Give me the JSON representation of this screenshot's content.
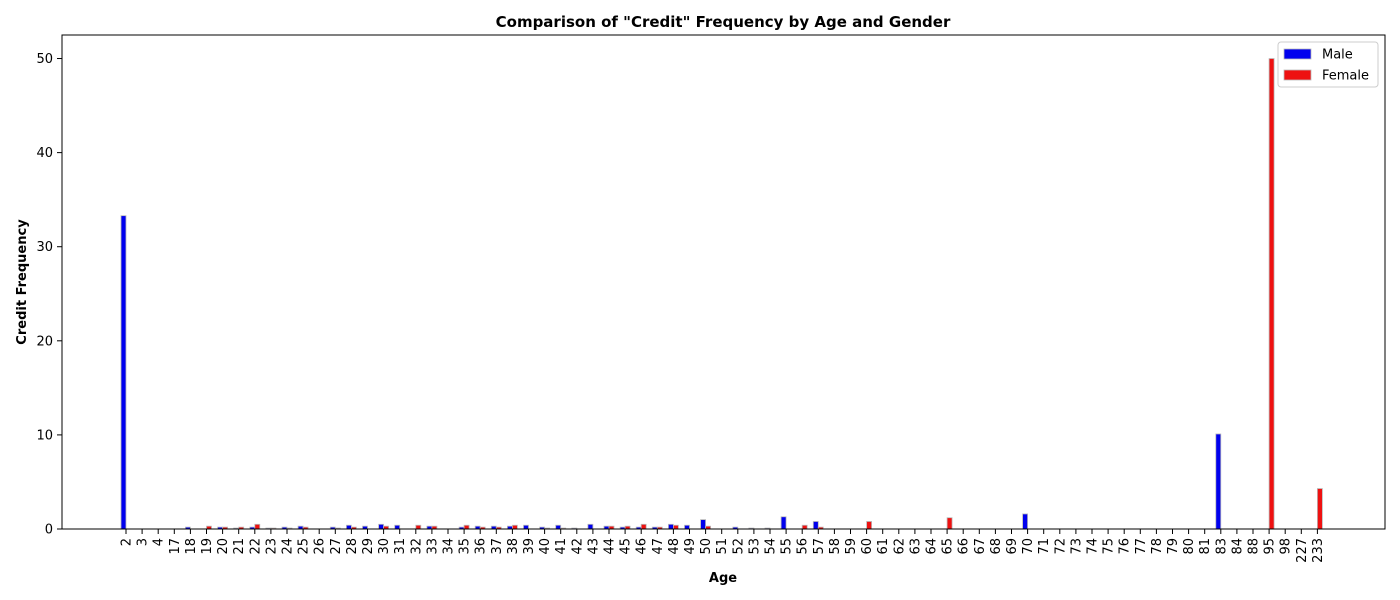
{
  "chart_data": {
    "type": "bar",
    "title": "Comparison of \"Credit\" Frequency by Age and Gender",
    "xlabel": "Age",
    "ylabel": "Credit Frequency",
    "ylim": [
      0,
      52.5
    ],
    "yticks": [
      0,
      10,
      20,
      30,
      40,
      50
    ],
    "grid": false,
    "legend_position": "top-right",
    "categories": [
      "2",
      "3",
      "4",
      "17",
      "18",
      "19",
      "20",
      "21",
      "22",
      "23",
      "24",
      "25",
      "26",
      "27",
      "28",
      "29",
      "30",
      "31",
      "32",
      "33",
      "34",
      "35",
      "36",
      "37",
      "38",
      "39",
      "40",
      "41",
      "42",
      "43",
      "44",
      "45",
      "46",
      "47",
      "48",
      "49",
      "50",
      "51",
      "52",
      "53",
      "54",
      "55",
      "56",
      "57",
      "58",
      "59",
      "60",
      "61",
      "62",
      "63",
      "64",
      "65",
      "66",
      "67",
      "68",
      "69",
      "70",
      "71",
      "72",
      "73",
      "74",
      "75",
      "76",
      "77",
      "78",
      "79",
      "80",
      "81",
      "83",
      "84",
      "88",
      "95",
      "98",
      "227",
      "233"
    ],
    "series": [
      {
        "name": "Male",
        "color": "#0000ee",
        "values": [
          33.3,
          0,
          0,
          0,
          0.2,
          0,
          0.2,
          0.1,
          0.2,
          0.1,
          0.2,
          0.3,
          0,
          0.2,
          0.4,
          0.3,
          0.5,
          0.4,
          0,
          0.3,
          0,
          0.2,
          0.3,
          0.3,
          0.3,
          0.4,
          0.2,
          0.4,
          0.1,
          0.5,
          0.3,
          0.2,
          0.2,
          0.2,
          0.5,
          0.4,
          1.0,
          0,
          0.2,
          0.1,
          0.1,
          1.3,
          0,
          0.8,
          0,
          0,
          0,
          0,
          0,
          0,
          0,
          0,
          0,
          0,
          0,
          0,
          1.6,
          0,
          0,
          0,
          0,
          0,
          0,
          0,
          0,
          0,
          0,
          0,
          10.1,
          0,
          0,
          0,
          0,
          0,
          0
        ]
      },
      {
        "name": "Female",
        "color": "#ee1111",
        "values": [
          0,
          0,
          0,
          0,
          0,
          0.3,
          0.2,
          0.2,
          0.5,
          0.1,
          0.1,
          0.2,
          0,
          0.1,
          0.2,
          0,
          0.3,
          0,
          0.4,
          0.3,
          0,
          0.4,
          0.2,
          0.2,
          0.4,
          0,
          0.1,
          0.1,
          0,
          0,
          0.3,
          0.3,
          0.5,
          0.2,
          0.4,
          0,
          0.3,
          0,
          0,
          0,
          0,
          0,
          0.4,
          0.2,
          0,
          0,
          0.8,
          0,
          0,
          0,
          0,
          1.2,
          0,
          0,
          0,
          0,
          0,
          0,
          0,
          0,
          0,
          0,
          0,
          0,
          0,
          0,
          0,
          0,
          0,
          0,
          0,
          50,
          0,
          0,
          4.3
        ]
      }
    ]
  }
}
